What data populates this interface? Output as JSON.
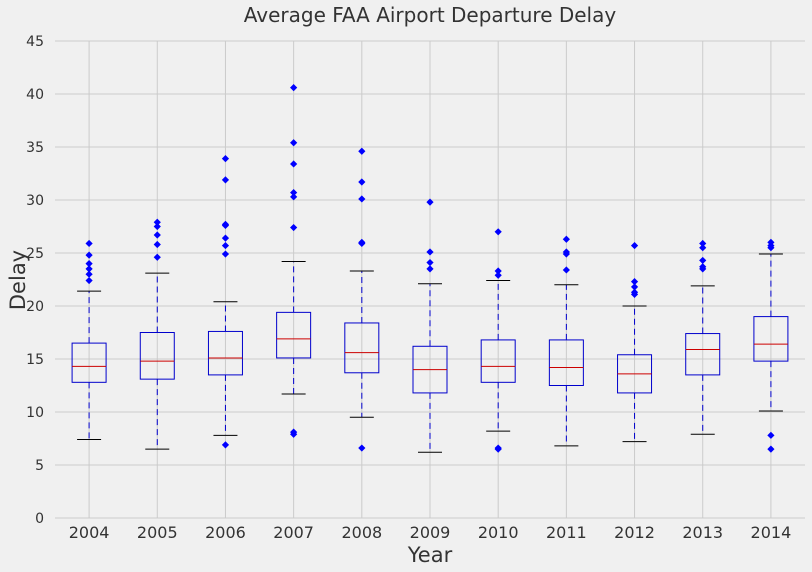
{
  "chart_data": {
    "type": "boxplot",
    "title": "Average FAA Airport Departure Delay",
    "xlabel": "Year",
    "ylabel": "Delay",
    "ylim": [
      0,
      45
    ],
    "yticks": [
      0,
      5,
      10,
      15,
      20,
      25,
      30,
      35,
      40,
      45
    ],
    "grid": true,
    "colors": {
      "box": "#0000cc",
      "median": "#cc0000",
      "whisker": "#0000cc",
      "cap": "#000000",
      "flier": "#0000ff",
      "grid": "#cbcbcb",
      "background": "#f0f0f0"
    },
    "categories": [
      "2004",
      "2005",
      "2006",
      "2007",
      "2008",
      "2009",
      "2010",
      "2011",
      "2012",
      "2013",
      "2014"
    ],
    "boxes": [
      {
        "q1": 12.8,
        "median": 14.3,
        "q3": 16.5,
        "whislo": 7.4,
        "whishi": 21.4,
        "fliers": [
          22.4,
          23.0,
          23.5,
          24.0,
          24.8,
          25.9
        ]
      },
      {
        "q1": 13.1,
        "median": 14.8,
        "q3": 17.5,
        "whislo": 6.5,
        "whishi": 23.1,
        "fliers": [
          24.6,
          25.8,
          26.7,
          27.5,
          27.9
        ]
      },
      {
        "q1": 13.5,
        "median": 15.1,
        "q3": 17.6,
        "whislo": 7.8,
        "whishi": 20.4,
        "fliers": [
          6.9,
          24.9,
          25.7,
          26.4,
          27.6,
          27.7,
          31.9,
          33.9
        ]
      },
      {
        "q1": 15.1,
        "median": 16.9,
        "q3": 19.4,
        "whislo": 11.7,
        "whishi": 24.2,
        "fliers": [
          7.9,
          8.1,
          27.4,
          30.3,
          30.7,
          33.4,
          35.4,
          40.6
        ]
      },
      {
        "q1": 13.7,
        "median": 15.6,
        "q3": 18.4,
        "whislo": 9.5,
        "whishi": 23.3,
        "fliers": [
          6.6,
          25.9,
          26.0,
          30.1,
          31.7,
          34.6
        ]
      },
      {
        "q1": 11.8,
        "median": 14.0,
        "q3": 16.2,
        "whislo": 6.2,
        "whishi": 22.1,
        "fliers": [
          23.5,
          24.1,
          25.1,
          29.8
        ]
      },
      {
        "q1": 12.8,
        "median": 14.3,
        "q3": 16.8,
        "whislo": 8.2,
        "whishi": 22.4,
        "fliers": [
          6.5,
          6.6,
          22.9,
          23.3,
          27.0
        ]
      },
      {
        "q1": 12.5,
        "median": 14.2,
        "q3": 16.8,
        "whislo": 6.8,
        "whishi": 22.0,
        "fliers": [
          23.4,
          24.9,
          25.1,
          26.3
        ]
      },
      {
        "q1": 11.8,
        "median": 13.6,
        "q3": 15.4,
        "whislo": 7.2,
        "whishi": 20.0,
        "fliers": [
          21.1,
          21.3,
          21.8,
          22.3,
          25.7
        ]
      },
      {
        "q1": 13.5,
        "median": 15.9,
        "q3": 17.4,
        "whislo": 7.9,
        "whishi": 21.9,
        "fliers": [
          23.5,
          23.7,
          24.3,
          25.5,
          25.9
        ]
      },
      {
        "q1": 14.8,
        "median": 16.4,
        "q3": 19.0,
        "whislo": 10.1,
        "whishi": 24.9,
        "fliers": [
          6.5,
          7.8,
          25.5,
          25.7,
          26.0
        ]
      }
    ]
  }
}
